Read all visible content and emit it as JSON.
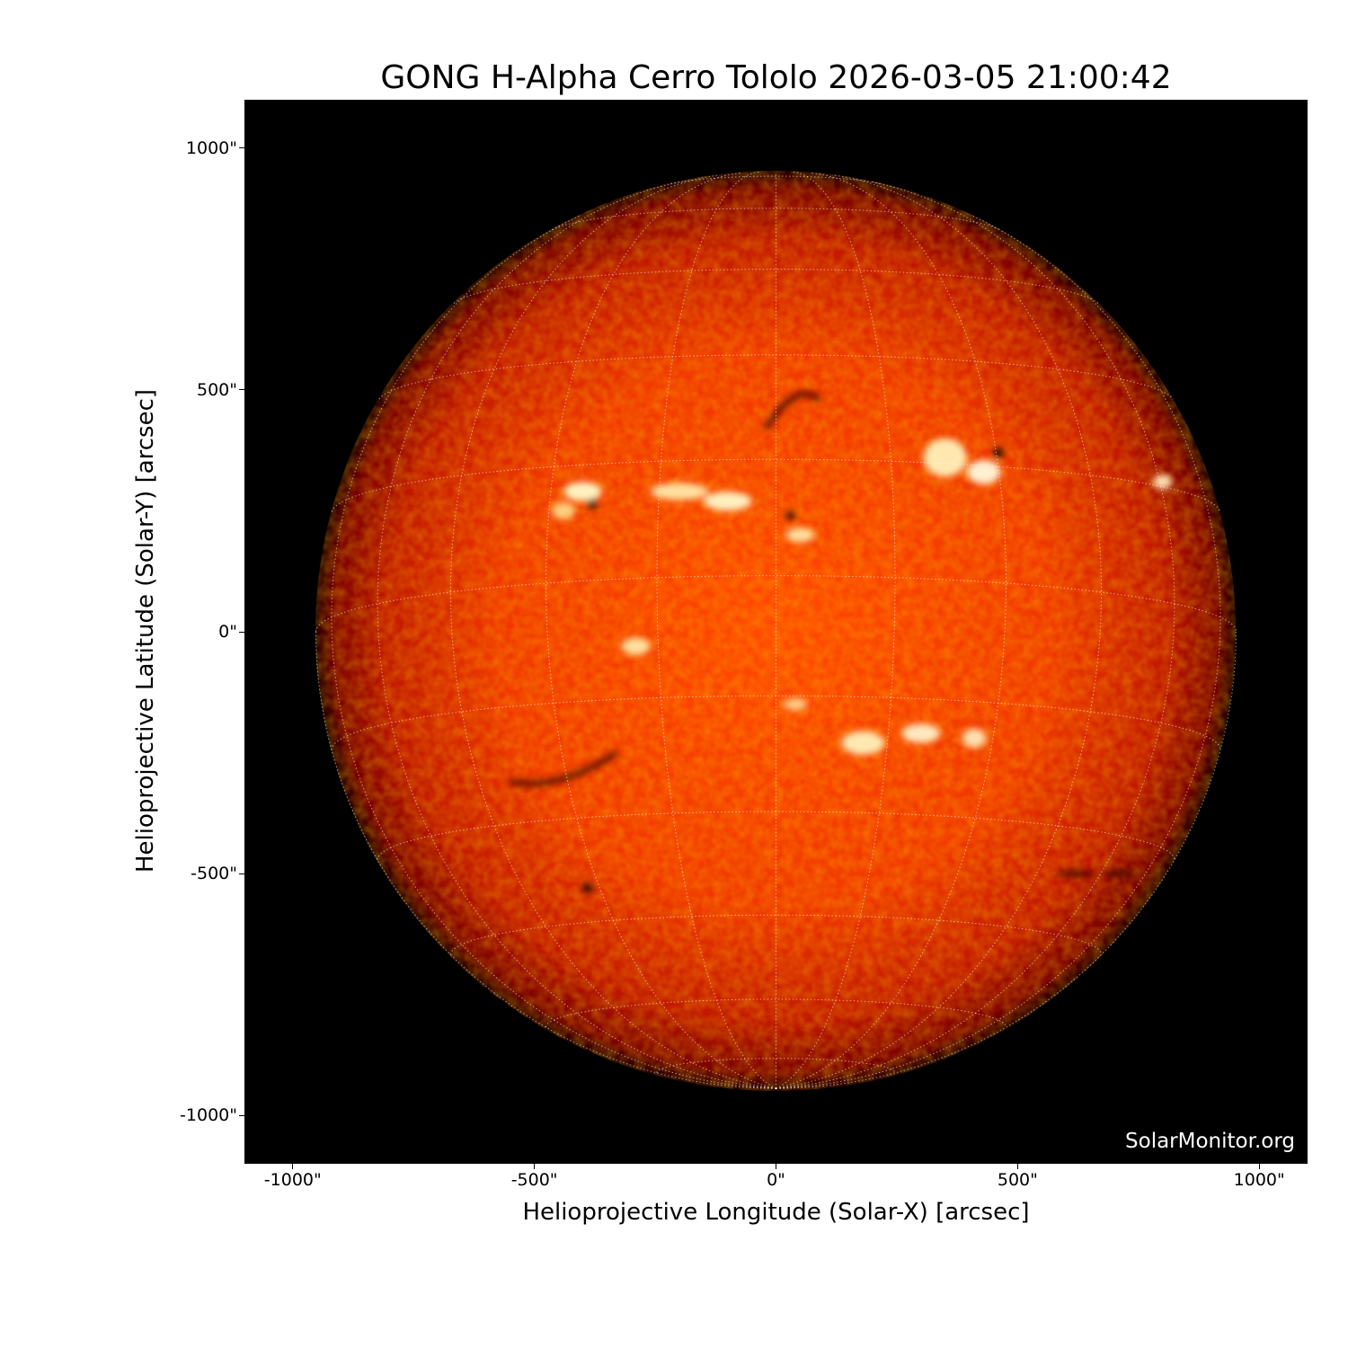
{
  "chart_data": {
    "type": "image",
    "title": "GONG H-Alpha Cerro Tololo 2026-03-05 21:00:42",
    "xlabel": "Helioprojective Longitude (Solar-X) [arcsec]",
    "ylabel": "Helioprojective Latitude (Solar-Y) [arcsec]",
    "xlim": [
      -1100,
      1100
    ],
    "ylim": [
      -1100,
      1100
    ],
    "x_ticks": [
      {
        "value": -1000,
        "label": "-1000\""
      },
      {
        "value": -500,
        "label": "-500\""
      },
      {
        "value": 0,
        "label": "0\""
      },
      {
        "value": 500,
        "label": "500\""
      },
      {
        "value": 1000,
        "label": "1000\""
      }
    ],
    "y_ticks": [
      {
        "value": 1000,
        "label": "1000\""
      },
      {
        "value": 500,
        "label": "500\""
      },
      {
        "value": 0,
        "label": "0\""
      },
      {
        "value": -500,
        "label": "-500\""
      },
      {
        "value": -1000,
        "label": "-1000\""
      }
    ],
    "grid": "heliographic lat/lon, 15° spacing, dotted",
    "colormap": [
      "#000000",
      "#8b0000",
      "#ff4500",
      "#ffffff"
    ],
    "watermark": "SolarMonitor.org"
  }
}
